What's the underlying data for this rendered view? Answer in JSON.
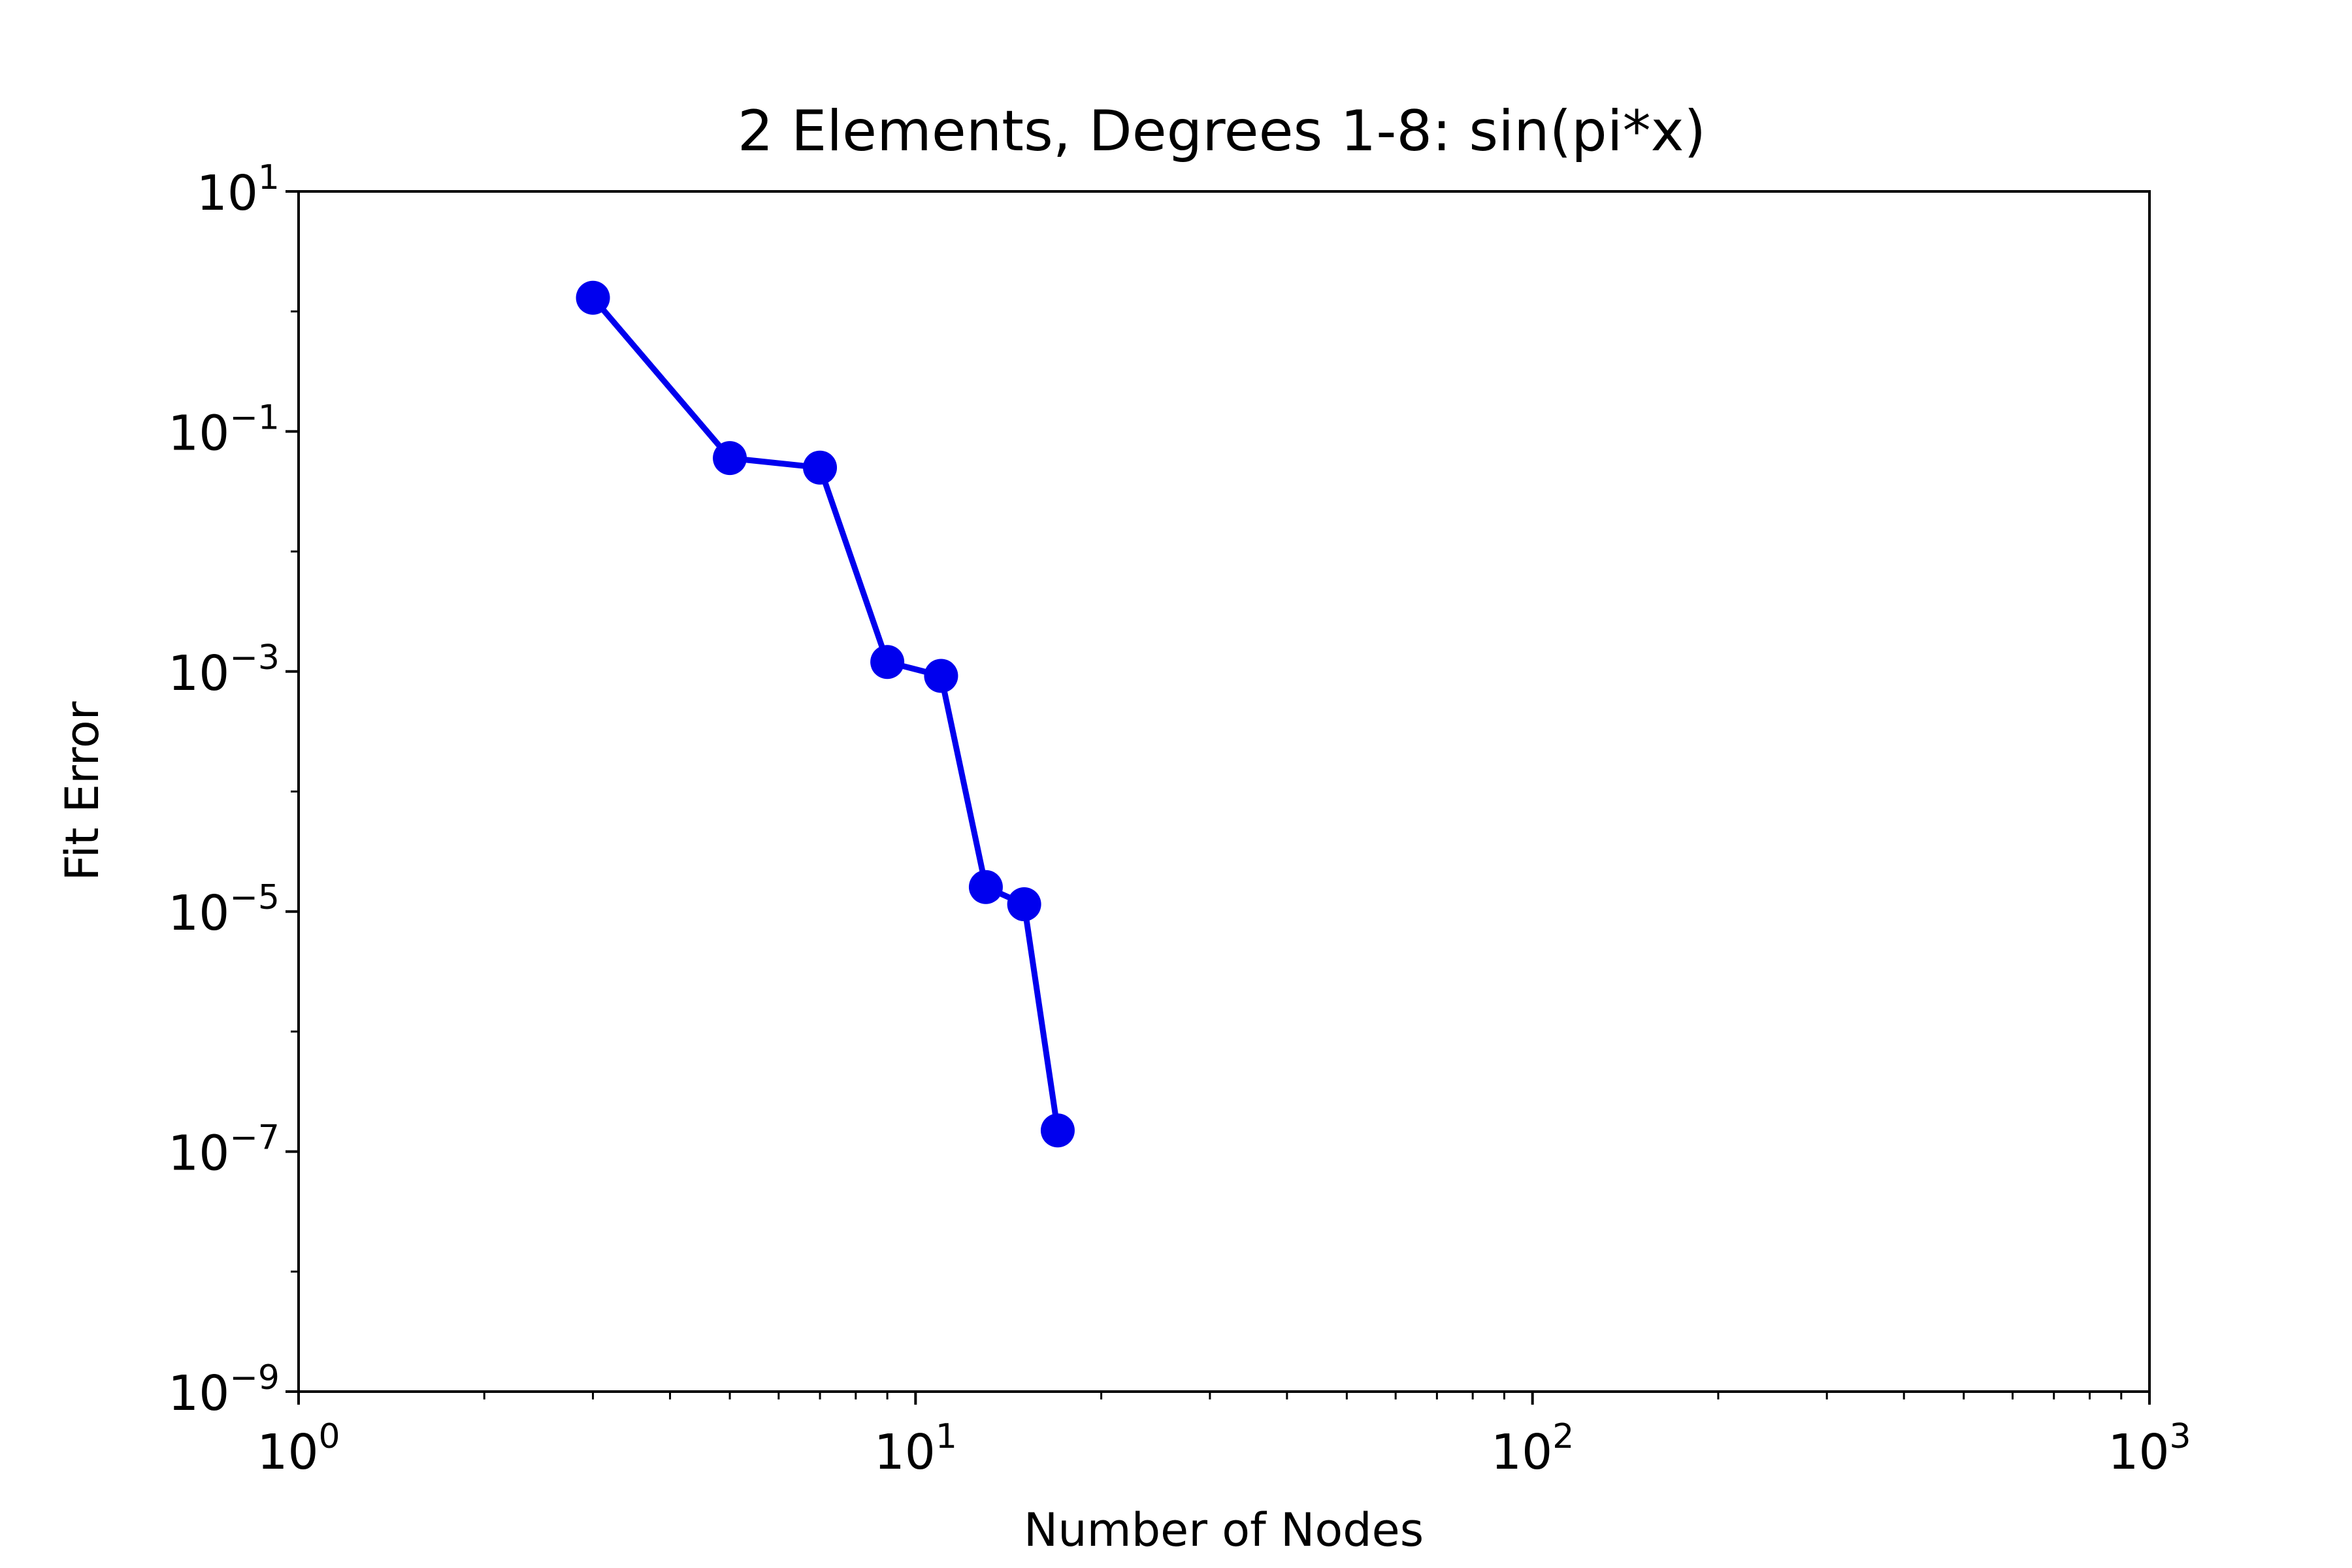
{
  "chart_data": {
    "type": "line",
    "title": "2 Elements, Degrees 1-8: sin(pi*x)",
    "xlabel": "Number of Nodes",
    "ylabel": "Fit Error",
    "xscale": "log",
    "yscale": "log",
    "xlim": [
      1,
      1000
    ],
    "ylim": [
      1e-09,
      10
    ],
    "grid": false,
    "line_color": "#0000ee",
    "x_ticks": [
      {
        "base": "10",
        "exp": "0",
        "value": 1
      },
      {
        "base": "10",
        "exp": "1",
        "value": 10
      },
      {
        "base": "10",
        "exp": "2",
        "value": 100
      },
      {
        "base": "10",
        "exp": "3",
        "value": 1000
      }
    ],
    "y_ticks": [
      {
        "base": "10",
        "exp": "1",
        "value": 10
      },
      {
        "base": "10",
        "exp": "−1",
        "value": 0.1
      },
      {
        "base": "10",
        "exp": "−3",
        "value": 0.001
      },
      {
        "base": "10",
        "exp": "−5",
        "value": 1e-05
      },
      {
        "base": "10",
        "exp": "−7",
        "value": 1e-07
      },
      {
        "base": "10",
        "exp": "−9",
        "value": 1e-09
      }
    ],
    "series": [
      {
        "x": [
          3,
          5,
          7,
          9,
          11,
          13,
          15,
          17
        ],
        "y": [
          1.3,
          0.06,
          0.05,
          0.0012,
          0.00092,
          1.6e-05,
          1.15e-05,
          1.5e-07
        ]
      }
    ]
  }
}
